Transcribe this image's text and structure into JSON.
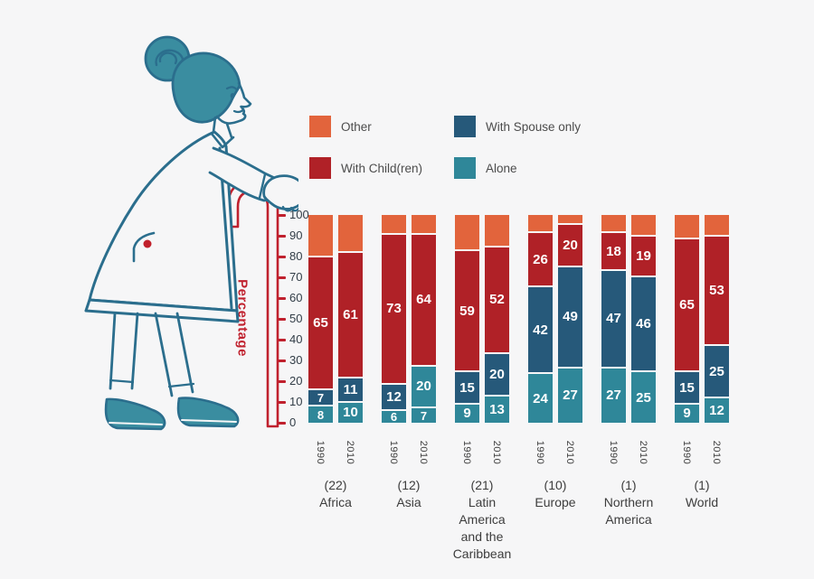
{
  "page": {
    "background": "#f6f6f7"
  },
  "colors": {
    "alone": "#2f8799",
    "spouse": "#26597a",
    "child": "#b02127",
    "other": "#e2643c",
    "cane": "#c0212e",
    "tick_text": "#323d47",
    "legend_text": "#4c4c4c",
    "background": "#f6f6f7",
    "illustration_outline": "#2b6e8d",
    "illustration_fill": "#3a8da0",
    "button_dot": "#c1202b"
  },
  "legend": {
    "items": [
      {
        "key": "other",
        "label": "Other"
      },
      {
        "key": "spouse",
        "label": "With Spouse only"
      },
      {
        "key": "child",
        "label": "With Child(ren)"
      },
      {
        "key": "alone",
        "label": "Alone"
      }
    ]
  },
  "axis": {
    "title": "Percentage",
    "ticks": [
      0,
      10,
      20,
      30,
      40,
      50,
      60,
      70,
      80,
      90,
      100
    ]
  },
  "chart_data": {
    "type": "bar",
    "stacked": true,
    "ylabel": "Percentage",
    "ylim": [
      0,
      100
    ],
    "tick_step": 10,
    "legend_position": "top",
    "series_keys": [
      "alone",
      "spouse",
      "child",
      "other"
    ],
    "series_labels": {
      "alone": "Alone",
      "spouse": "With Spouse only",
      "child": "With Child(ren)",
      "other": "Other"
    },
    "label_segments": [
      "alone",
      "spouse",
      "child"
    ],
    "groups": [
      {
        "name": "Africa",
        "count": "(22)",
        "bars": [
          {
            "year": "1990",
            "values": {
              "alone": 8,
              "spouse": 7,
              "child": 65,
              "other": 20
            }
          },
          {
            "year": "2010",
            "values": {
              "alone": 10,
              "spouse": 11,
              "child": 61,
              "other": 18
            }
          }
        ]
      },
      {
        "name": "Asia",
        "count": "(12)",
        "bars": [
          {
            "year": "1990",
            "values": {
              "alone": 6,
              "spouse": 12,
              "child": 73,
              "other": 9
            }
          },
          {
            "year": "2010",
            "values": {
              "alone": 7,
              "spouse": 20,
              "child": 64,
              "other": 9
            },
            "color_overrides": {
              "spouse": "alone"
            }
          }
        ]
      },
      {
        "name": "Latin America and the Caribbean",
        "count": "(21)",
        "bars": [
          {
            "year": "1990",
            "values": {
              "alone": 9,
              "spouse": 15,
              "child": 59,
              "other": 17
            }
          },
          {
            "year": "2010",
            "values": {
              "alone": 13,
              "spouse": 20,
              "child": 52,
              "other": 15
            }
          }
        ]
      },
      {
        "name": "Europe",
        "count": "(10)",
        "bars": [
          {
            "year": "1990",
            "values": {
              "alone": 24,
              "spouse": 42,
              "child": 26,
              "other": 8
            }
          },
          {
            "year": "2010",
            "values": {
              "alone": 27,
              "spouse": 49,
              "child": 20,
              "other": 4
            }
          }
        ]
      },
      {
        "name": "Northern America",
        "count": "(1)",
        "bars": [
          {
            "year": "1990",
            "values": {
              "alone": 27,
              "spouse": 47,
              "child": 18,
              "other": 8
            }
          },
          {
            "year": "2010",
            "values": {
              "alone": 25,
              "spouse": 46,
              "child": 19,
              "other": 10
            }
          }
        ]
      },
      {
        "name": "World",
        "count": "(1)",
        "bars": [
          {
            "year": "1990",
            "values": {
              "alone": 9,
              "spouse": 15,
              "child": 65,
              "other": 11
            }
          },
          {
            "year": "2010",
            "values": {
              "alone": 12,
              "spouse": 25,
              "child": 53,
              "other": 10
            }
          }
        ]
      }
    ]
  }
}
